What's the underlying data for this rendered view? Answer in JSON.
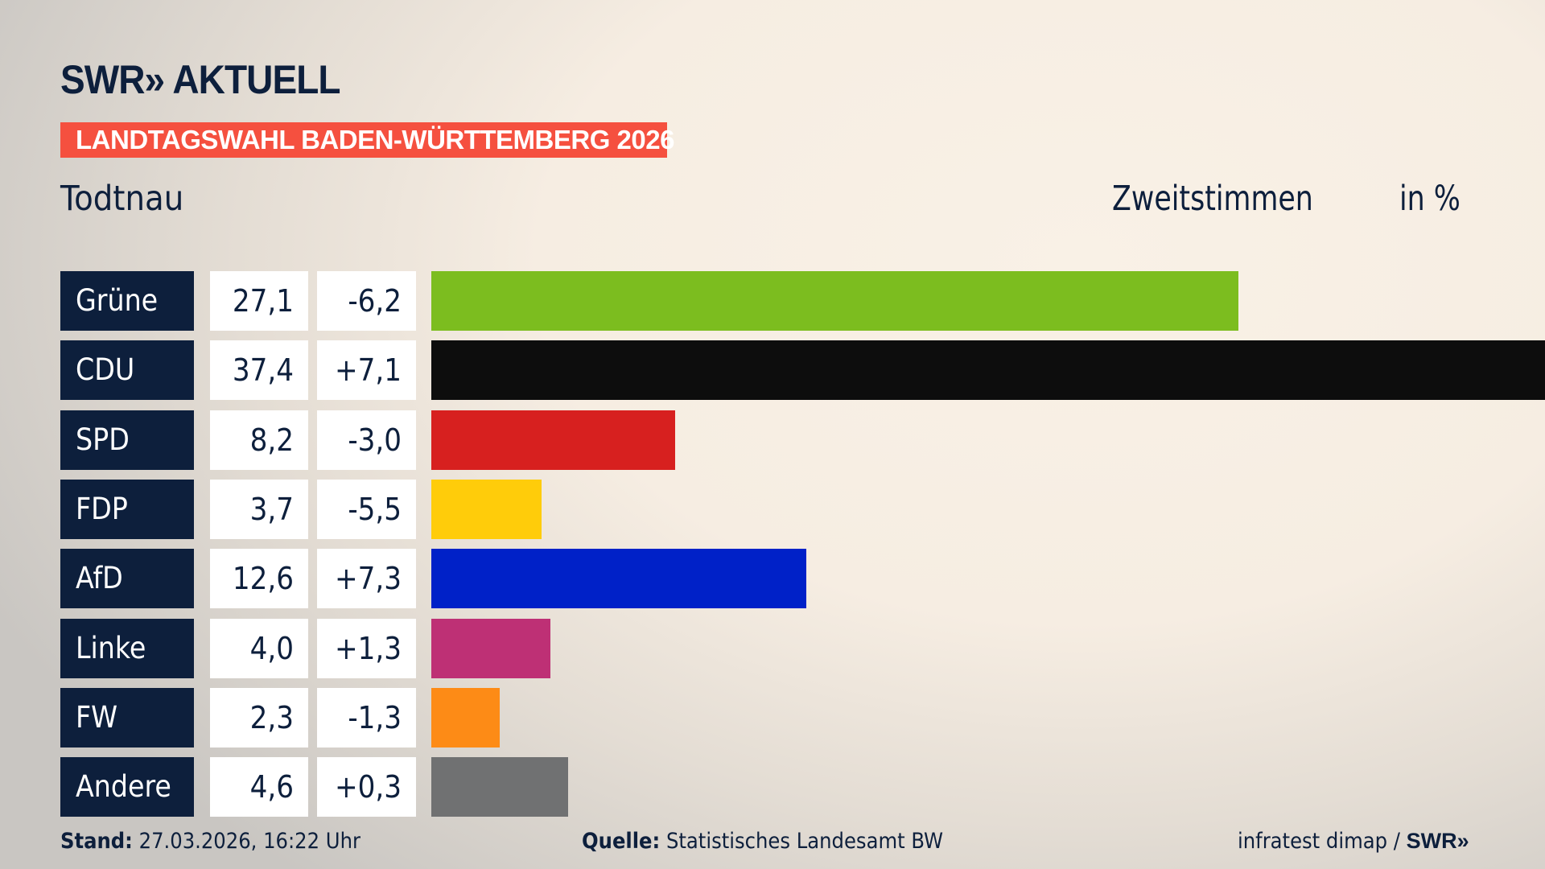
{
  "header": {
    "logo": "SWR» AKTUELL",
    "banner": "LANDTAGSWAHL BADEN-WÜRTTEMBERG 2026",
    "place": "Todtnau",
    "measure": "Zweitstimmen",
    "unit": "in %"
  },
  "chart_data": {
    "type": "bar",
    "orientation": "horizontal",
    "xlim": [
      0,
      37.4
    ],
    "categories": [
      "Grüne",
      "CDU",
      "SPD",
      "FDP",
      "AfD",
      "Linke",
      "FW",
      "Andere"
    ],
    "values": [
      27.1,
      37.4,
      8.2,
      3.7,
      12.6,
      4.0,
      2.3,
      4.6
    ],
    "value_labels": [
      "27,1",
      "37,4",
      "8,2",
      "3,7",
      "12,6",
      "4,0",
      "2,3",
      "4,6"
    ],
    "diff_labels": [
      "-6,2",
      "+7,1",
      "-3,0",
      "-5,5",
      "+7,3",
      "+1,3",
      "-1,3",
      "+0,3"
    ],
    "colors": [
      "#7cbd1f",
      "#0d0d0d",
      "#d7201f",
      "#ffcc0a",
      "#0021c8",
      "#be3075",
      "#fd8b16",
      "#707172"
    ]
  },
  "footer": {
    "stand_label": "Stand:",
    "stand_value": "27.03.2026, 16:22 Uhr",
    "source_label": "Quelle:",
    "source_value": "Statistisches Landesamt BW",
    "credit": "infratest dimap / ",
    "credit_logo": "SWR»"
  }
}
